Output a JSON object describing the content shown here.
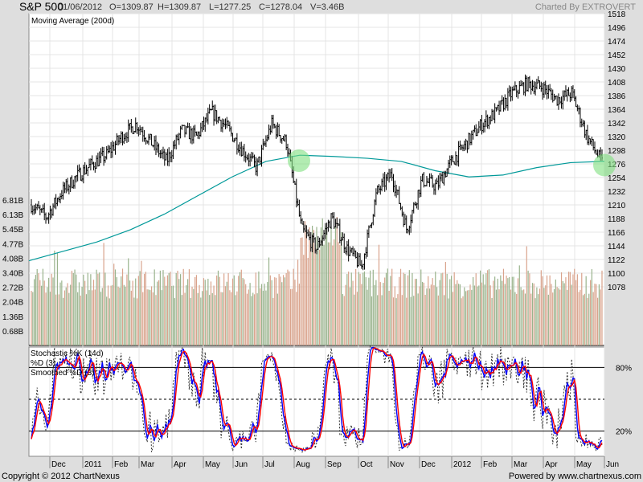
{
  "header": {
    "symbol": "S&P 500",
    "date": "01/06/2012",
    "open": "O=1309.87",
    "high": "H=1309.87",
    "low": "L=1277.25",
    "close": "C=1278.04",
    "volume": "V=3.46B",
    "brand": "Charted By EXTROVERT"
  },
  "footer": {
    "copyright": "Copyright © 2012 ChartNexus",
    "powered": "Powered by www.chartnexus.com"
  },
  "colors": {
    "price": "#000000",
    "ma": "#009999",
    "highlight": "#7ee07e",
    "vol_up": "#99b38c",
    "vol_down": "#d9a38c",
    "k": "#333333",
    "d": "#0000ff",
    "sd": "#ff0000"
  },
  "chart_data": [
    {
      "type": "ohlc",
      "title": "S&P 500",
      "legend": [
        "Moving Average (200d)"
      ],
      "price_ticks": [
        1518,
        1496,
        1474,
        1452,
        1430,
        1408,
        1386,
        1364,
        1342,
        1320,
        1298,
        1276,
        1254,
        1232,
        1210,
        1188,
        1166,
        1144,
        1122,
        1100,
        1078
      ],
      "volume_ticks": [
        "6.81B",
        "6.13B",
        "5.45B",
        "4.77B",
        "4.08B",
        "3.40B",
        "2.72B",
        "2.04B",
        "1.36B",
        "0.68B"
      ],
      "x_ticks": [
        "Dec",
        "2011",
        "Feb",
        "Mar",
        "Apr",
        "May",
        "Jun",
        "Jul",
        "Aug",
        "Sep",
        "Oct",
        "Nov",
        "Dec",
        "2012",
        "Feb",
        "Mar",
        "Apr",
        "May",
        "Jun"
      ],
      "ylim": [
        1078,
        1518
      ],
      "semimonthly_close": [
        1210,
        1190,
        1230,
        1255,
        1275,
        1290,
        1320,
        1340,
        1310,
        1280,
        1330,
        1320,
        1360,
        1335,
        1300,
        1270,
        1340,
        1310,
        1170,
        1140,
        1190,
        1140,
        1110,
        1230,
        1260,
        1170,
        1250,
        1240,
        1280,
        1310,
        1340,
        1360,
        1390,
        1405,
        1400,
        1380,
        1390,
        1320,
        1278
      ],
      "ma200": [
        1120,
        1135,
        1150,
        1170,
        1195,
        1225,
        1255,
        1280,
        1290,
        1288,
        1285,
        1280,
        1265,
        1255,
        1258,
        1270,
        1278,
        1280
      ],
      "highlights": [
        {
          "date": "Aug 2011",
          "price": 1285
        },
        {
          "date": "Jun 2012",
          "price": 1278
        }
      ]
    },
    {
      "type": "line",
      "legend": [
        "Stochastic %K (14d)",
        "%D (3)",
        "Smoothed %D (3)"
      ],
      "y_ticks": [
        "80%",
        "20%"
      ],
      "levels": [
        80,
        50,
        20
      ],
      "ylim": [
        0,
        100
      ]
    }
  ]
}
